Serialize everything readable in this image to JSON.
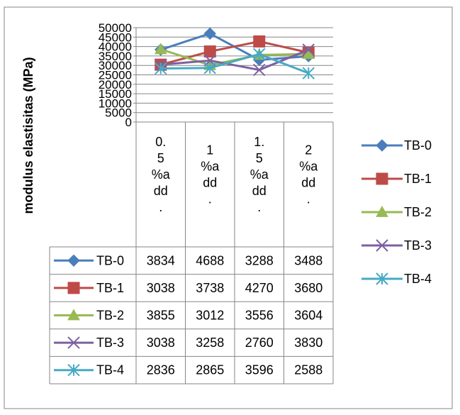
{
  "chart_data": {
    "type": "line",
    "ylabel": "modulus elastisitas (MPa)",
    "xlabel": "",
    "title": "",
    "ylim": [
      0,
      50000
    ],
    "y_ticks": [
      "0",
      "5000",
      "10000",
      "15000",
      "20000",
      "25000",
      "30000",
      "35000",
      "40000",
      "45000",
      "50000"
    ],
    "categories": [
      [
        "0.",
        "5",
        "%a",
        "dd",
        "."
      ],
      [
        "1",
        "%a",
        "dd",
        "."
      ],
      [
        "1.",
        "5",
        "%a",
        "dd",
        "."
      ],
      [
        "2",
        "%a",
        "dd",
        "."
      ]
    ],
    "grid": true,
    "legend_position": "right",
    "data_table": true,
    "series": [
      {
        "name": "TB-0",
        "color": "#4a7ebb",
        "marker": "diamond",
        "values": [
          38340,
          46880,
          32880,
          34880
        ],
        "table_labels": [
          "3834",
          "4688",
          "3288",
          "3488"
        ]
      },
      {
        "name": "TB-1",
        "color": "#be4b48",
        "marker": "square",
        "values": [
          30380,
          37380,
          42700,
          36800
        ],
        "table_labels": [
          "3038",
          "3738",
          "4270",
          "3680"
        ]
      },
      {
        "name": "TB-2",
        "color": "#98b954",
        "marker": "triangle",
        "values": [
          38550,
          30120,
          35560,
          36040
        ],
        "table_labels": [
          "3855",
          "3012",
          "3556",
          "3604"
        ]
      },
      {
        "name": "TB-3",
        "color": "#7d60a0",
        "marker": "x",
        "values": [
          30380,
          32580,
          27600,
          38300
        ],
        "table_labels": [
          "3038",
          "3258",
          "2760",
          "3830"
        ]
      },
      {
        "name": "TB-4",
        "color": "#46aac5",
        "marker": "star",
        "values": [
          28360,
          28650,
          35960,
          25880
        ],
        "table_labels": [
          "2836",
          "2865",
          "3596",
          "2588"
        ]
      }
    ]
  }
}
